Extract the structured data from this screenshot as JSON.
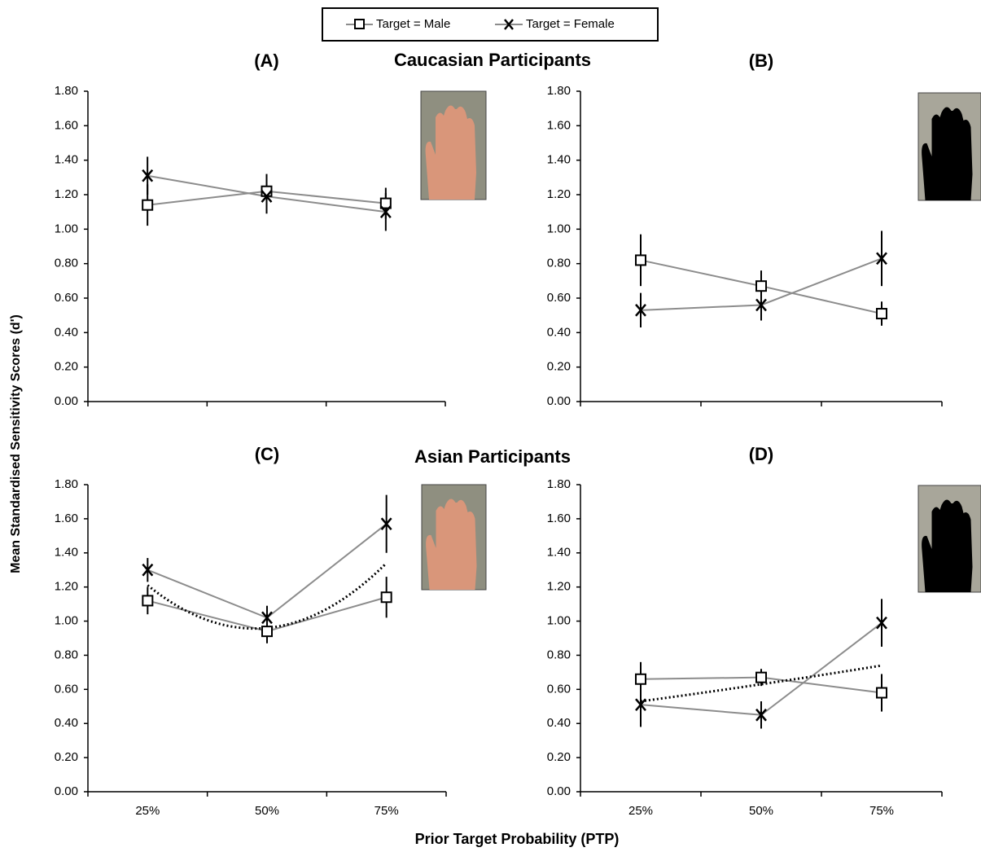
{
  "figure": {
    "group_titles": [
      "Caucasian Participants",
      "Asian Participants"
    ],
    "y_label": "Mean Standardised Sensitivity Scores (d')",
    "x_label": "Prior Target Probability (PTP)"
  },
  "chart_data": [
    {
      "type": "line",
      "title": "(A)",
      "categories": [
        null,
        null,
        null
      ],
      "series": [
        {
          "name": "Target = Male",
          "color": "#8c8c8c",
          "marker": "square",
          "values": [
            1.14,
            1.22,
            1.15
          ],
          "errors": [
            0.12,
            0.1,
            0.09
          ]
        },
        {
          "name": "Target = Female",
          "color": "#8c8c8c",
          "marker": "x",
          "values": [
            1.31,
            1.19,
            1.1
          ],
          "errors": [
            0.11,
            0.1,
            0.11
          ]
        }
      ],
      "ylim": [
        0,
        1.8
      ],
      "yticks": [
        {
          "value": 0,
          "label": "0.00"
        },
        {
          "value": 0.2,
          "label": "0.20"
        },
        {
          "value": 0.4,
          "label": "0.40"
        },
        {
          "value": 0.6,
          "label": "0.60"
        },
        {
          "value": 0.8,
          "label": "0.80"
        },
        {
          "value": 1,
          "label": "1.00"
        },
        {
          "value": 1.2,
          "label": "1.20"
        },
        {
          "value": 1.4,
          "label": "1.40"
        },
        {
          "value": 1.6,
          "label": "1.60"
        },
        {
          "value": 1.8,
          "label": "1.80"
        }
      ]
    },
    {
      "type": "line",
      "title": "(B)",
      "categories": [
        null,
        null,
        null
      ],
      "series": [
        {
          "name": "Target = Male",
          "color": "#8c8c8c",
          "marker": "square",
          "values": [
            0.82,
            0.67,
            0.51
          ],
          "errors": [
            0.15,
            0.09,
            0.07
          ]
        },
        {
          "name": "Target = Female",
          "color": "#8c8c8c",
          "marker": "x",
          "values": [
            0.53,
            0.56,
            0.83
          ],
          "errors": [
            0.1,
            0.09,
            0.16
          ]
        }
      ],
      "ylim": [
        0,
        1.8
      ],
      "yticks": [
        {
          "value": 0,
          "label": "0.00"
        },
        {
          "value": 0.2,
          "label": "0.20"
        },
        {
          "value": 0.4,
          "label": "0.40"
        },
        {
          "value": 0.6,
          "label": "0.60"
        },
        {
          "value": 0.8,
          "label": "0.80"
        },
        {
          "value": 1,
          "label": "1.00"
        },
        {
          "value": 1.2,
          "label": "1.20"
        },
        {
          "value": 1.4,
          "label": "1.40"
        },
        {
          "value": 1.6,
          "label": "1.60"
        },
        {
          "value": 1.8,
          "label": "1.80"
        }
      ]
    },
    {
      "type": "line",
      "title": "(C)",
      "categories": [
        "25%",
        "50%",
        "75%"
      ],
      "series": [
        {
          "name": "Target = Male",
          "color": "#8c8c8c",
          "marker": "square",
          "values": [
            1.12,
            0.94,
            1.14
          ],
          "errors": [
            0.08,
            0.07,
            0.12
          ]
        },
        {
          "name": "Target = Female",
          "color": "#8c8c8c",
          "marker": "x",
          "values": [
            1.3,
            1.02,
            1.57
          ],
          "errors": [
            0.07,
            0.07,
            0.17
          ]
        }
      ],
      "trend": {
        "color": "#000000",
        "values": [
          1.21,
          0.96,
          1.34
        ]
      },
      "ylim": [
        0,
        1.8
      ],
      "yticks": [
        {
          "value": 0,
          "label": "0.00"
        },
        {
          "value": 0.2,
          "label": "0.20"
        },
        {
          "value": 0.4,
          "label": "0.40"
        },
        {
          "value": 0.6,
          "label": "0.60"
        },
        {
          "value": 0.8,
          "label": "0.80"
        },
        {
          "value": 1,
          "label": "1.00"
        },
        {
          "value": 1.2,
          "label": "1.20"
        },
        {
          "value": 1.4,
          "label": "1.40"
        },
        {
          "value": 1.6,
          "label": "1.60"
        },
        {
          "value": 1.8,
          "label": "1.80"
        }
      ]
    },
    {
      "type": "line",
      "title": "(D)",
      "categories": [
        "25%",
        "50%",
        "75%"
      ],
      "series": [
        {
          "name": "Target = Male",
          "color": "#8c8c8c",
          "marker": "square",
          "values": [
            0.66,
            0.67,
            0.58
          ],
          "errors": [
            0.1,
            0.05,
            0.11
          ]
        },
        {
          "name": "Target = Female",
          "color": "#8c8c8c",
          "marker": "x",
          "values": [
            0.51,
            0.45,
            0.99
          ],
          "errors": [
            0.13,
            0.08,
            0.14
          ]
        }
      ],
      "trend": {
        "color": "#000000",
        "values": [
          0.53,
          0.63,
          0.74
        ]
      },
      "ylim": [
        0,
        1.8
      ],
      "yticks": [
        {
          "value": 0,
          "label": "0.00"
        },
        {
          "value": 0.2,
          "label": "0.20"
        },
        {
          "value": 0.4,
          "label": "0.40"
        },
        {
          "value": 0.6,
          "label": "0.60"
        },
        {
          "value": 0.8,
          "label": "0.80"
        },
        {
          "value": 1,
          "label": "1.00"
        },
        {
          "value": 1.2,
          "label": "1.20"
        },
        {
          "value": 1.4,
          "label": "1.40"
        },
        {
          "value": 1.6,
          "label": "1.60"
        },
        {
          "value": 1.8,
          "label": "1.80"
        }
      ]
    }
  ]
}
